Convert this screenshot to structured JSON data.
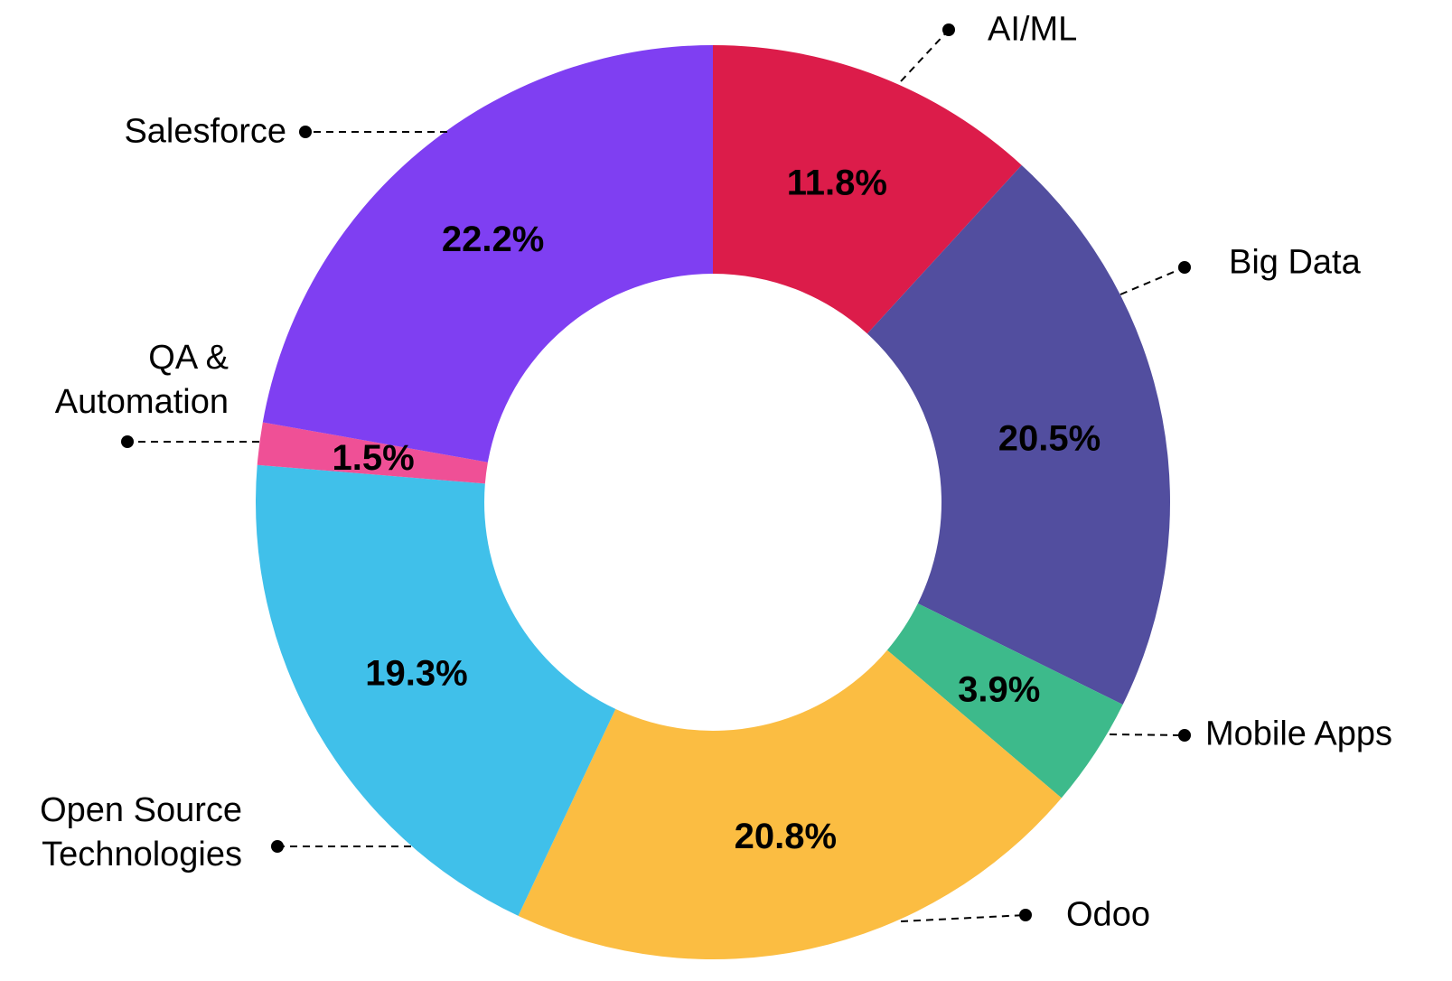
{
  "chart_data": {
    "type": "donut",
    "categories": [
      "AI/ML",
      "Big Data",
      "Mobile Apps",
      "Odoo",
      "Open Source Technologies",
      "QA & Automation",
      "Salesforce"
    ],
    "values": [
      11.8,
      20.5,
      3.9,
      20.8,
      19.3,
      1.5,
      22.2
    ],
    "value_labels": [
      "11.8%",
      "20.5%",
      "3.9%",
      "20.8%",
      "19.3%",
      "1.5%",
      "22.2%"
    ],
    "colors": [
      "#dc1c4a",
      "#524e9f",
      "#3dba8b",
      "#fbbd42",
      "#40c0ea",
      "#ef5096",
      "#7f3ff2"
    ]
  }
}
